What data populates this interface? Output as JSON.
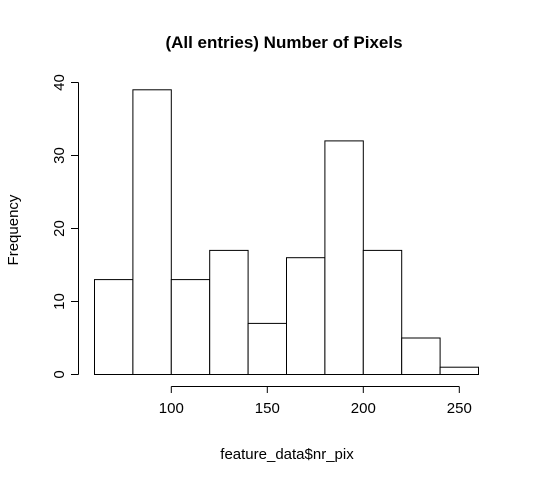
{
  "chart_data": {
    "type": "bar",
    "title": "(All entries) Number of Pixels",
    "xlabel": "feature_data$nr_pix",
    "ylabel": "Frequency",
    "bins": [
      {
        "x0": 60,
        "x1": 80,
        "value": 13
      },
      {
        "x0": 80,
        "x1": 100,
        "value": 39
      },
      {
        "x0": 100,
        "x1": 120,
        "value": 13
      },
      {
        "x0": 120,
        "x1": 140,
        "value": 17
      },
      {
        "x0": 140,
        "x1": 160,
        "value": 7
      },
      {
        "x0": 160,
        "x1": 180,
        "value": 16
      },
      {
        "x0": 180,
        "x1": 200,
        "value": 32
      },
      {
        "x0": 200,
        "x1": 220,
        "value": 17
      },
      {
        "x0": 220,
        "x1": 240,
        "value": 5
      },
      {
        "x0": 240,
        "x1": 260,
        "value": 1
      }
    ],
    "x_ticks": [
      "100",
      "150",
      "200",
      "250"
    ],
    "y_ticks": [
      "0",
      "10",
      "20",
      "30",
      "40"
    ],
    "xlim": [
      60,
      260
    ],
    "ylim": [
      0,
      40
    ],
    "grid": false
  }
}
